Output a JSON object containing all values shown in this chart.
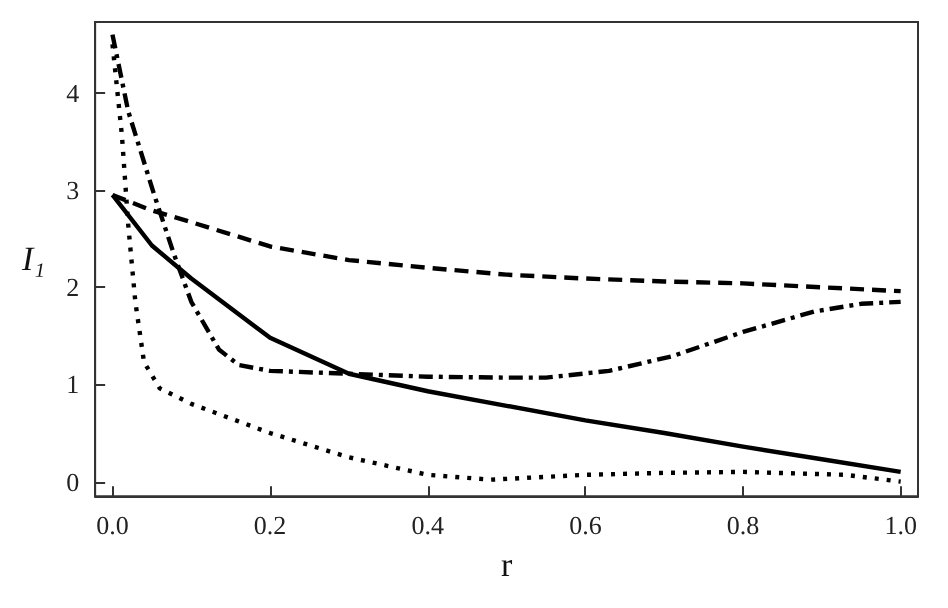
{
  "chart_data": {
    "type": "line",
    "xlabel": "r",
    "ylabel": "I₁",
    "xlim": [
      -0.022,
      1.022
    ],
    "ylim": [
      -0.15,
      4.73
    ],
    "xticks": [
      {
        "value": 0,
        "label": "0.0"
      },
      {
        "value": 0.2,
        "label": "0.2"
      },
      {
        "value": 0.4,
        "label": "0.4"
      },
      {
        "value": 0.6,
        "label": "0.6"
      },
      {
        "value": 0.8,
        "label": "0.8"
      },
      {
        "value": 1,
        "label": "1.0"
      }
    ],
    "yticks": [
      0,
      1,
      2,
      3,
      4
    ],
    "grid": false,
    "marker": "none",
    "series": [
      {
        "color": "#000000",
        "line_style": "solid",
        "x": [
          0,
          0.05,
          0.1,
          0.2,
          0.3,
          0.4,
          0.5,
          0.6,
          0.7,
          0.8,
          0.9,
          1.0
        ],
        "values": [
          2.95,
          2.43,
          2.09,
          1.48,
          1.11,
          0.93,
          0.78,
          0.63,
          0.5,
          0.36,
          0.23,
          0.1
        ]
      },
      {
        "color": "#000000",
        "line_style": "dashed",
        "x": [
          0,
          0.05,
          0.1,
          0.2,
          0.3,
          0.4,
          0.5,
          0.6,
          0.7,
          0.8,
          0.9,
          1.0
        ],
        "values": [
          2.95,
          2.79,
          2.67,
          2.42,
          2.28,
          2.2,
          2.13,
          2.09,
          2.06,
          2.04,
          2.0,
          1.96
        ]
      },
      {
        "color": "#000000",
        "line_style": "dashdot",
        "x": [
          0,
          0.02,
          0.053,
          0.078,
          0.1,
          0.135,
          0.16,
          0.2,
          0.3,
          0.4,
          0.5,
          0.55,
          0.63,
          0.71,
          0.8,
          0.89,
          0.95,
          1.0
        ],
        "values": [
          4.6,
          3.81,
          2.95,
          2.34,
          1.85,
          1.36,
          1.2,
          1.14,
          1.11,
          1.08,
          1.07,
          1.07,
          1.14,
          1.29,
          1.54,
          1.75,
          1.83,
          1.85
        ]
      },
      {
        "color": "#000000",
        "line_style": "dotted",
        "x": [
          0,
          0.012,
          0.02,
          0.029,
          0.04,
          0.06,
          0.1,
          0.2,
          0.3,
          0.4,
          0.48,
          0.6,
          0.7,
          0.8,
          0.93,
          1.0
        ],
        "values": [
          4.5,
          3.56,
          2.64,
          1.85,
          1.23,
          0.96,
          0.8,
          0.5,
          0.25,
          0.07,
          0.02,
          0.07,
          0.09,
          0.1,
          0.07,
          0.0
        ]
      }
    ]
  }
}
